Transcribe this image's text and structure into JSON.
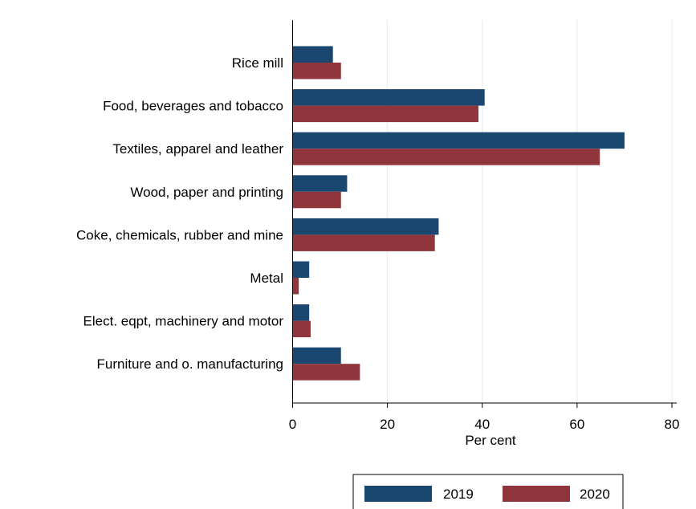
{
  "chart_data": {
    "type": "bar",
    "orientation": "horizontal",
    "categories": [
      "Rice mill",
      "Food, beverages and tobacco",
      "Textiles, apparel and leather",
      "Wood, paper and printing",
      "Coke, chemicals, rubber and mine",
      "Metal",
      "Elect. eqpt, machinery and motor",
      "Furniture and o. manufacturing"
    ],
    "series": [
      {
        "name": "2019",
        "color": "#1a476f",
        "values": [
          8.5,
          40.5,
          70.0,
          11.5,
          30.8,
          3.5,
          3.5,
          10.2
        ]
      },
      {
        "name": "2020",
        "color": "#90353b",
        "values": [
          10.2,
          39.2,
          64.8,
          10.2,
          30.0,
          1.3,
          3.8,
          14.2
        ]
      }
    ],
    "xlabel": "Per cent",
    "ylabel": "",
    "title": "",
    "xlim": [
      0,
      80
    ],
    "xticks": [
      "0",
      "20",
      "40",
      "60",
      "80"
    ],
    "grid": true,
    "legend": {
      "position": "bottom-right"
    }
  }
}
